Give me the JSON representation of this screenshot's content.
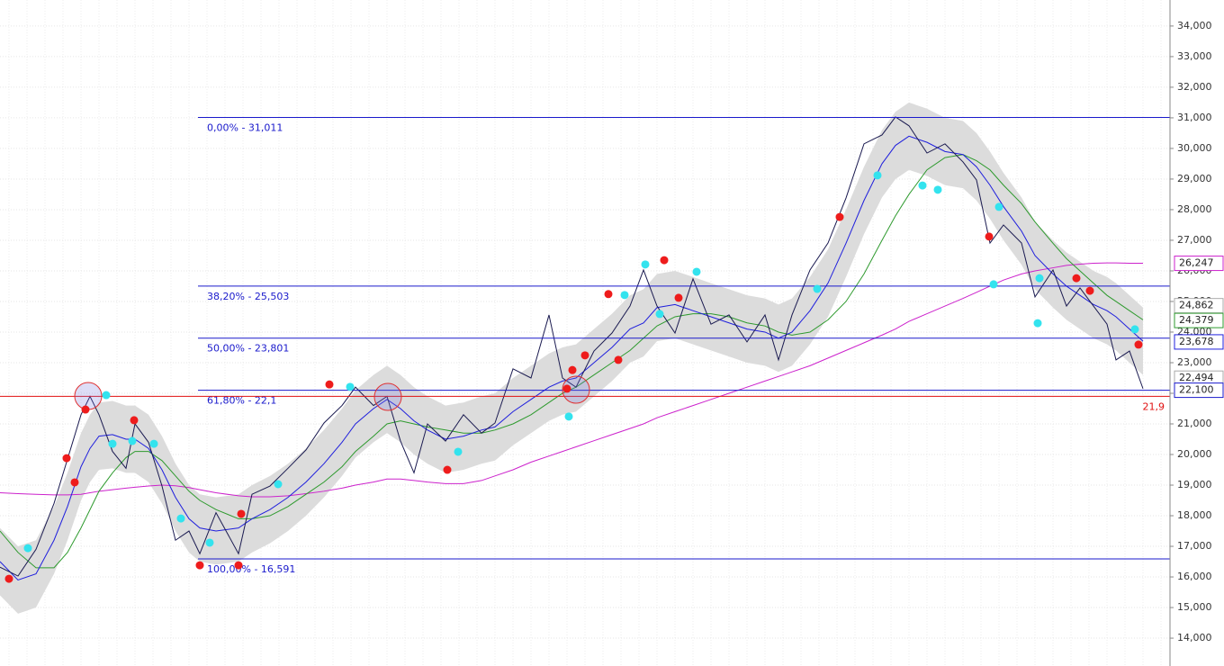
{
  "chart_data": {
    "type": "line",
    "xlim": [
      0,
      1300
    ],
    "ylim": [
      13.09,
      34.85
    ],
    "yticks": [
      {
        "value": 34,
        "label": "34,000"
      },
      {
        "value": 33,
        "label": "33,000"
      },
      {
        "value": 32,
        "label": "32,000"
      },
      {
        "value": 31,
        "label": "31,000"
      },
      {
        "value": 30,
        "label": "30,000"
      },
      {
        "value": 29,
        "label": "29,000"
      },
      {
        "value": 28,
        "label": "28,000"
      },
      {
        "value": 27,
        "label": "27,000"
      },
      {
        "value": 26,
        "label": "26,000"
      },
      {
        "value": 25,
        "label": "25,000"
      },
      {
        "value": 24,
        "label": "24,000"
      },
      {
        "value": 23,
        "label": "23,000"
      },
      {
        "value": 22,
        "label": "22,000"
      },
      {
        "value": 21,
        "label": "21,000"
      },
      {
        "value": 20,
        "label": "20,000"
      },
      {
        "value": 19,
        "label": "19,000"
      },
      {
        "value": 18,
        "label": "18,000"
      },
      {
        "value": 17,
        "label": "17,000"
      },
      {
        "value": 16,
        "label": "16,000"
      },
      {
        "value": 15,
        "label": "15,000"
      },
      {
        "value": 14,
        "label": "14,000"
      }
    ],
    "grid": true,
    "x": [
      0,
      20,
      40,
      60,
      75,
      90,
      100,
      110,
      125,
      140,
      150,
      165,
      180,
      195,
      210,
      222,
      240,
      265,
      280,
      300,
      320,
      340,
      360,
      380,
      395,
      415,
      430,
      445,
      460,
      475,
      495,
      515,
      535,
      550,
      570,
      590,
      610,
      625,
      640,
      660,
      680,
      700,
      715,
      730,
      750,
      770,
      790,
      810,
      830,
      850,
      865,
      880,
      900,
      920,
      940,
      960,
      980,
      995,
      1010,
      1030,
      1050,
      1070,
      1085,
      1100,
      1115,
      1135,
      1150,
      1170,
      1185,
      1200,
      1215,
      1230,
      1240,
      1255,
      1270
    ],
    "band": {
      "color": "#dcdcdc",
      "upper": [
        17.6,
        17.0,
        17.2,
        18.3,
        19.4,
        20.7,
        21.3,
        21.7,
        21.75,
        21.6,
        21.6,
        21.3,
        20.6,
        19.7,
        19.0,
        18.7,
        18.6,
        18.7,
        19.0,
        19.3,
        19.7,
        20.2,
        20.8,
        21.5,
        22.1,
        22.6,
        22.9,
        22.6,
        22.2,
        21.9,
        21.6,
        21.7,
        21.9,
        22.0,
        22.5,
        22.9,
        23.3,
        23.5,
        23.6,
        24.1,
        24.6,
        25.2,
        25.4,
        25.9,
        26.0,
        25.8,
        25.6,
        25.4,
        25.2,
        25.1,
        24.9,
        25.1,
        25.8,
        26.7,
        28.0,
        29.4,
        30.6,
        31.2,
        31.5,
        31.3,
        31.0,
        30.9,
        30.5,
        29.9,
        29.2,
        28.4,
        27.6,
        27.0,
        26.6,
        26.3,
        26.0,
        25.8,
        25.6,
        25.2,
        24.8
      ],
      "lower": [
        15.4,
        14.8,
        15.0,
        16.1,
        17.2,
        18.5,
        19.1,
        19.5,
        19.55,
        19.4,
        19.4,
        19.1,
        18.4,
        17.5,
        16.8,
        16.5,
        16.4,
        16.5,
        16.8,
        17.1,
        17.5,
        18.0,
        18.6,
        19.3,
        19.9,
        20.4,
        20.7,
        20.4,
        20.0,
        19.7,
        19.4,
        19.5,
        19.7,
        19.8,
        20.3,
        20.7,
        21.1,
        21.3,
        21.4,
        21.9,
        22.4,
        23.0,
        23.2,
        23.7,
        23.8,
        23.6,
        23.4,
        23.2,
        23.0,
        22.9,
        22.7,
        22.9,
        23.6,
        24.5,
        25.8,
        27.2,
        28.4,
        29.0,
        29.3,
        29.1,
        28.8,
        28.7,
        28.3,
        27.7,
        27.0,
        26.2,
        25.4,
        24.8,
        24.4,
        24.1,
        23.8,
        23.6,
        23.4,
        23.0,
        22.6
      ]
    },
    "series": [
      {
        "color": "#cc22cc",
        "values": [
          18.75,
          18.72,
          18.7,
          18.68,
          18.68,
          18.7,
          18.75,
          18.8,
          18.85,
          18.9,
          18.93,
          18.97,
          19.0,
          18.98,
          18.92,
          18.85,
          18.75,
          18.65,
          18.62,
          18.62,
          18.65,
          18.72,
          18.8,
          18.9,
          19.0,
          19.1,
          19.2,
          19.2,
          19.15,
          19.1,
          19.05,
          19.05,
          19.15,
          19.3,
          19.5,
          19.75,
          19.95,
          20.1,
          20.25,
          20.45,
          20.65,
          20.85,
          21.0,
          21.2,
          21.4,
          21.6,
          21.8,
          22.0,
          22.2,
          22.4,
          22.55,
          22.7,
          22.9,
          23.15,
          23.4,
          23.65,
          23.9,
          24.1,
          24.35,
          24.6,
          24.85,
          25.1,
          25.3,
          25.5,
          25.7,
          25.9,
          26.0,
          26.1,
          26.18,
          26.22,
          26.25,
          26.26,
          26.26,
          26.25,
          26.25
        ]
      },
      {
        "color": "#2e9a2e",
        "values": [
          17.5,
          16.8,
          16.3,
          16.3,
          16.8,
          17.6,
          18.2,
          18.8,
          19.4,
          19.9,
          20.1,
          20.1,
          19.8,
          19.3,
          18.8,
          18.5,
          18.2,
          17.9,
          17.9,
          18.0,
          18.3,
          18.7,
          19.1,
          19.6,
          20.1,
          20.6,
          21.0,
          21.1,
          21.0,
          20.9,
          20.8,
          20.7,
          20.7,
          20.8,
          21.0,
          21.3,
          21.7,
          22.0,
          22.2,
          22.6,
          23.0,
          23.4,
          23.8,
          24.2,
          24.5,
          24.6,
          24.6,
          24.5,
          24.3,
          24.2,
          24.0,
          23.9,
          24.0,
          24.4,
          25.0,
          25.9,
          27.0,
          27.8,
          28.5,
          29.3,
          29.7,
          29.8,
          29.6,
          29.3,
          28.8,
          28.2,
          27.6,
          26.9,
          26.4,
          26.0,
          25.6,
          25.2,
          25.0,
          24.7,
          24.4
        ]
      },
      {
        "color": "#1f1fdd",
        "values": [
          16.5,
          15.9,
          16.1,
          17.2,
          18.3,
          19.6,
          20.2,
          20.6,
          20.65,
          20.5,
          20.5,
          20.2,
          19.5,
          18.6,
          17.9,
          17.6,
          17.5,
          17.6,
          17.9,
          18.2,
          18.6,
          19.1,
          19.7,
          20.4,
          21.0,
          21.5,
          21.8,
          21.5,
          21.1,
          20.8,
          20.5,
          20.6,
          20.8,
          20.9,
          21.4,
          21.8,
          22.2,
          22.4,
          22.5,
          23.0,
          23.5,
          24.1,
          24.3,
          24.8,
          24.9,
          24.7,
          24.5,
          24.3,
          24.1,
          24.0,
          23.8,
          24.0,
          24.7,
          25.6,
          26.9,
          28.3,
          29.5,
          30.1,
          30.4,
          30.2,
          29.9,
          29.8,
          29.4,
          28.8,
          28.1,
          27.3,
          26.5,
          25.9,
          25.5,
          25.2,
          24.9,
          24.7,
          24.5,
          24.1,
          23.7
        ]
      },
      {
        "color": "#1a1a50",
        "values": [
          16.32,
          16.03,
          16.9,
          18.4,
          19.85,
          21.3,
          21.9,
          21.3,
          20.1,
          19.55,
          21.0,
          20.4,
          18.97,
          17.2,
          17.5,
          16.76,
          18.1,
          16.76,
          18.7,
          18.97,
          19.55,
          20.15,
          21.03,
          21.6,
          22.2,
          21.6,
          21.9,
          20.44,
          19.4,
          21.0,
          20.44,
          21.3,
          20.7,
          21.03,
          22.8,
          22.5,
          24.56,
          22.5,
          22.2,
          23.38,
          23.97,
          24.85,
          26.03,
          24.85,
          23.97,
          25.74,
          24.26,
          24.56,
          23.68,
          24.56,
          23.09,
          24.56,
          26.03,
          26.91,
          28.38,
          30.15,
          30.44,
          31.03,
          30.74,
          29.85,
          30.15,
          29.56,
          28.97,
          26.91,
          27.5,
          26.91,
          25.15,
          26.03,
          24.85,
          25.44,
          24.85,
          24.26,
          23.09,
          23.38,
          22.15
        ]
      }
    ],
    "signals": [
      {
        "color": "#ee1c1c",
        "x": [
          10,
          83,
          74,
          95,
          149,
          222,
          265,
          268,
          366,
          497,
          630,
          636,
          650,
          676,
          687,
          738,
          754,
          933,
          1099,
          1196,
          1211,
          1265
        ],
        "values": [
          15.94,
          19.09,
          19.88,
          21.47,
          21.12,
          16.38,
          16.38,
          18.06,
          22.29,
          19.5,
          22.15,
          22.76,
          23.24,
          25.24,
          23.09,
          26.35,
          25.12,
          27.76,
          27.12,
          25.76,
          25.35,
          23.59
        ]
      },
      {
        "color": "#33e3ee",
        "x": [
          31,
          118,
          125,
          147,
          171,
          201,
          233,
          309,
          389,
          509,
          632,
          694,
          717,
          733,
          774,
          908,
          975,
          1025,
          1042,
          1104,
          1110,
          1155,
          1153,
          1261
        ],
        "values": [
          16.94,
          21.94,
          20.35,
          20.44,
          20.35,
          17.91,
          17.12,
          19.03,
          22.21,
          20.09,
          21.24,
          25.21,
          26.21,
          24.59,
          25.97,
          25.41,
          29.12,
          28.79,
          28.65,
          25.56,
          28.09,
          25.76,
          24.29,
          24.09
        ]
      }
    ],
    "fib_levels": [
      {
        "value": 31.011,
        "label": "0,00% - 31,011"
      },
      {
        "value": 25.503,
        "label": "38,20% - 25,503"
      },
      {
        "value": 23.801,
        "label": "50,00% - 23,801"
      },
      {
        "value": 22.1,
        "label": "61,80% - 22,1"
      },
      {
        "value": 16.591,
        "label": "100,00% - 16,591"
      }
    ],
    "fib_color": "#1a1acc",
    "fib_start": 220,
    "hline": {
      "value": 21.9,
      "label": "21,9",
      "color": "#e01010"
    },
    "price_labels": [
      {
        "value": 26.247,
        "label": "26,247",
        "color": "#cc22cc"
      },
      {
        "value": 24.862,
        "label": "24,862",
        "color": "#aaaaaa"
      },
      {
        "value": 24.379,
        "label": "24,379",
        "color": "#2e9a2e"
      },
      {
        "value": 23.678,
        "label": "23,678",
        "color": "#1f1fdd"
      },
      {
        "value": 22.494,
        "label": "22,494",
        "color": "#aaaaaa"
      },
      {
        "value": 22.1,
        "label": "22,100",
        "color": "#1a1acc"
      }
    ]
  }
}
